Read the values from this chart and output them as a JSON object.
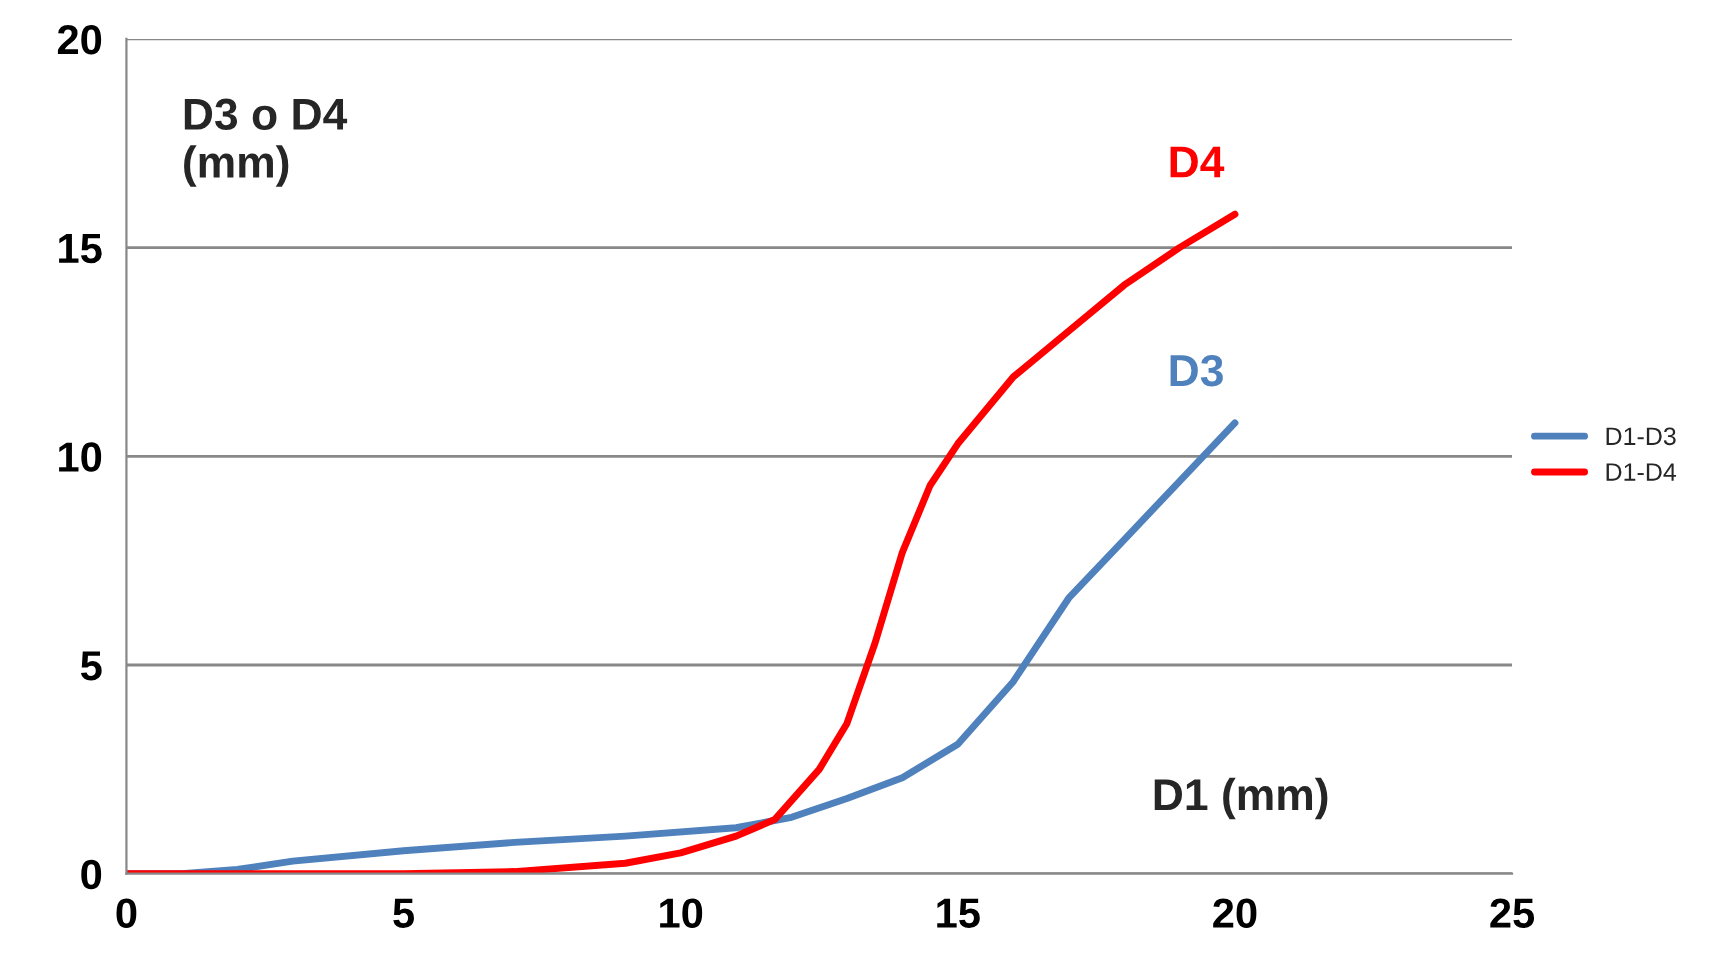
{
  "chart_data": {
    "type": "line",
    "xlabel": "D1 (mm)",
    "ylabel": "D3 o D4\n(mm)",
    "xlim": [
      0,
      25
    ],
    "xticks": [
      0,
      5,
      10,
      15,
      20,
      25
    ],
    "ylim": [
      0,
      20
    ],
    "yticks": [
      0,
      5,
      10,
      15,
      20
    ],
    "grid": "y",
    "legend": "right",
    "marker": "none",
    "line_style": "solid",
    "series": [
      {
        "name": "D1-D3",
        "color": "#4f81bd",
        "x": [
          0,
          1,
          2,
          3,
          5,
          7,
          9,
          11,
          12,
          13,
          14,
          15,
          16,
          17,
          18,
          19,
          20
        ],
        "values": [
          0,
          0,
          0.1,
          0.3,
          0.55,
          0.75,
          0.9,
          1.1,
          1.35,
          1.8,
          2.3,
          3.1,
          4.6,
          6.6,
          8.0,
          9.4,
          10.8
        ]
      },
      {
        "name": "D1-D4",
        "color": "#ff0000",
        "x": [
          0,
          5,
          7,
          9,
          10,
          11,
          11.7,
          12.5,
          13,
          13.5,
          14,
          14.5,
          15,
          16,
          17,
          18,
          19,
          20
        ],
        "values": [
          0,
          0,
          0.05,
          0.25,
          0.5,
          0.9,
          1.3,
          2.5,
          3.6,
          5.5,
          7.7,
          9.3,
          10.3,
          11.9,
          13.0,
          14.1,
          15.0,
          15.8
        ]
      }
    ],
    "annotations": [
      {
        "text": "D4",
        "x": 20,
        "y": 15.8
      },
      {
        "text": "D3",
        "x": 20,
        "y": 10.8
      }
    ]
  }
}
